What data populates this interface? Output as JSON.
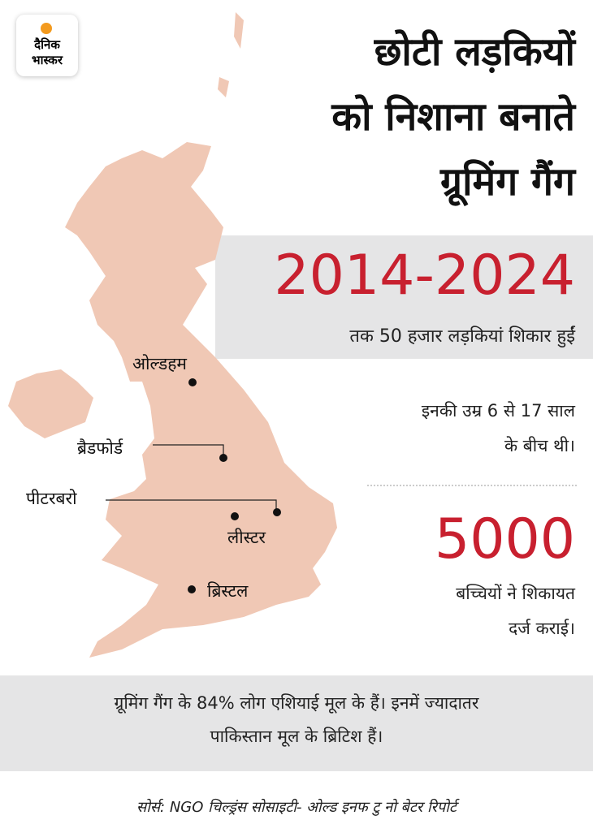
{
  "header": {
    "logo": [
      "दैनिक",
      "भास्कर"
    ],
    "title": [
      "छोटी लड़कियों",
      "को निशाना बनाते",
      "ग्रूमिंग गैंग"
    ]
  },
  "map": {
    "cities": [
      "ओल्डहम",
      "ब्रैडफोर्ड",
      "पीटरबरो",
      "लीस्टर",
      "ब्रिस्टल"
    ]
  },
  "stats": {
    "period": "2014-2024",
    "period_text": "तक 50 हजार लड़कियां शिकार हुईं",
    "age_text": [
      "इनकी उम्र 6 से 17 साल",
      "के बीच थी।"
    ],
    "complaints": "5000",
    "complaints_text": [
      "बच्चियों ने शिकायत",
      "दर्ज कराई।"
    ]
  },
  "note": [
    "ग्रूमिंग गैंग के 84% लोग एशियाई मूल के हैं। इनमें ज्यादातर",
    "पाकिस्तान मूल के ब्रिटिश हैं।"
  ],
  "footer": {
    "source": "सोर्स:  NGO चिल्ड्रंस सोसाइटी- ओल्ड इनफ टु नो बेटर रिपोर्ट"
  }
}
